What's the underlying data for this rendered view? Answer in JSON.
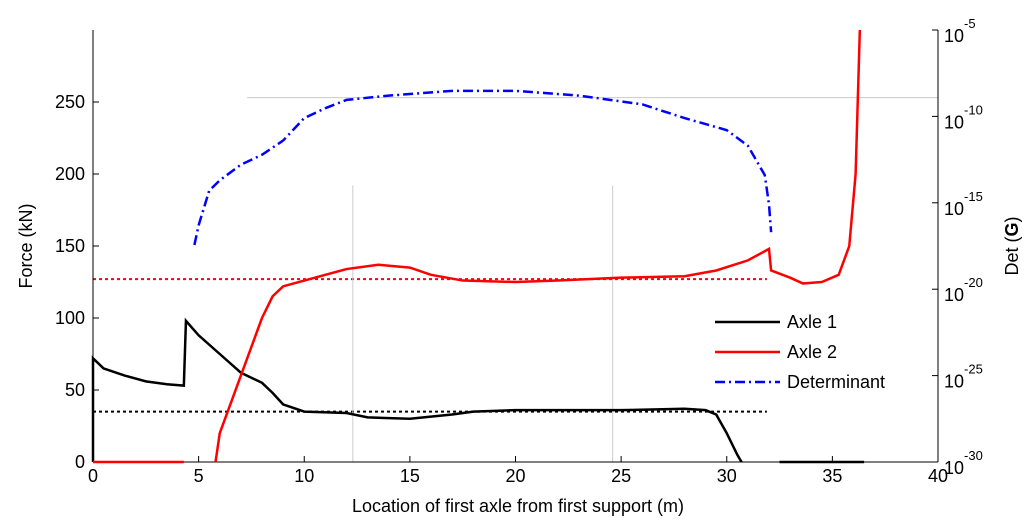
{
  "chart_data": {
    "type": "line",
    "xlabel": "Location of first axle from first support (m)",
    "ylabel": "Force (kN)",
    "y2label": [
      "Det (",
      "G",
      ")"
    ],
    "xlim": [
      0,
      40
    ],
    "xticks": [
      0,
      5,
      10,
      15,
      20,
      25,
      30,
      35,
      40
    ],
    "ylim": [
      0,
      300
    ],
    "yticks": [
      0,
      50,
      100,
      150,
      200,
      250
    ],
    "y2lim": [
      1e-30,
      1e-05
    ],
    "y2scale": "log",
    "y2ticks": [
      {
        "value": 1e-30,
        "label": "10",
        "exp": "-30"
      },
      {
        "value": 1e-25,
        "label": "10",
        "exp": "-25"
      },
      {
        "value": 1e-20,
        "label": "10",
        "exp": "-20"
      },
      {
        "value": 1e-15,
        "label": "10",
        "exp": "-15"
      },
      {
        "value": 1e-10,
        "label": "10",
        "exp": "-10"
      },
      {
        "value": 1e-05,
        "label": "10",
        "exp": "-5"
      }
    ],
    "legend": "lower right",
    "series": [
      {
        "name": "Axle 1",
        "color": "#000000",
        "dash": "solid",
        "x": [
          0,
          0,
          0.5,
          1.5,
          2.5,
          3.5,
          4.3,
          4.4,
          5,
          6,
          7,
          8,
          8.5,
          9,
          10,
          12,
          13,
          15,
          17,
          18,
          20,
          25,
          28,
          29,
          29.5,
          30,
          30.5,
          30.7,
          31.5,
          32.5,
          36.5
        ],
        "values": [
          0,
          72,
          65,
          60,
          56,
          54,
          53,
          98,
          88,
          75,
          62,
          55,
          48,
          40,
          35,
          34,
          31,
          30,
          33,
          35,
          36,
          36,
          37,
          36,
          33,
          20,
          5,
          0,
          null,
          0,
          0
        ]
      },
      {
        "name": "Axle 2",
        "color": "#ff0000",
        "dash": "solid",
        "x": [
          0,
          4.3,
          5,
          5.8,
          6,
          6.5,
          7,
          7.5,
          8,
          8.5,
          9,
          10,
          11,
          12,
          13.5,
          15,
          16,
          17.5,
          20,
          22,
          25,
          28,
          29.5,
          31,
          32,
          32.1,
          33,
          33.6,
          34.5,
          35.3,
          35.8,
          36.1,
          36.3
        ],
        "values": [
          0,
          0,
          null,
          0,
          20,
          40,
          60,
          80,
          100,
          115,
          122,
          126,
          130,
          134,
          137,
          135,
          130,
          126,
          125,
          126,
          128,
          129,
          133,
          140,
          148,
          133,
          128,
          124,
          125,
          130,
          150,
          200,
          300
        ]
      },
      {
        "name": "Determinant",
        "color": "#0000ff",
        "dash": "dashdot",
        "axis": "y2",
        "x": [
          4.8,
          5,
          5.5,
          6,
          7,
          8,
          9,
          10,
          11,
          12,
          14,
          17,
          20,
          23,
          26,
          28,
          30,
          31,
          31.8,
          32,
          32.1
        ],
        "values": [
          3.6e-18,
          5e-17,
          5e-15,
          2e-14,
          1.6e-13,
          6e-13,
          4e-12,
          8e-11,
          3e-10,
          9e-10,
          1.6e-09,
          3e-09,
          3e-09,
          1.6e-09,
          5e-10,
          8e-11,
          1.6e-11,
          2e-12,
          4e-14,
          8e-16,
          2e-17
        ]
      }
    ],
    "hlines": [
      {
        "y": 127,
        "x": [
          0,
          31.9
        ],
        "color": "#ff0000",
        "dash": "dotted"
      },
      {
        "y": 35,
        "x": [
          0,
          31.9
        ],
        "color": "#000000",
        "dash": "dotted"
      },
      {
        "y": 253,
        "x": [
          7.3,
          40
        ],
        "color": "#cccccc",
        "dash": "solid"
      }
    ],
    "vlines": [
      {
        "x": 12.3,
        "y": [
          0,
          192
        ],
        "color": "#cccccc"
      },
      {
        "x": 24.6,
        "y": [
          0,
          192
        ],
        "color": "#cccccc"
      }
    ]
  }
}
